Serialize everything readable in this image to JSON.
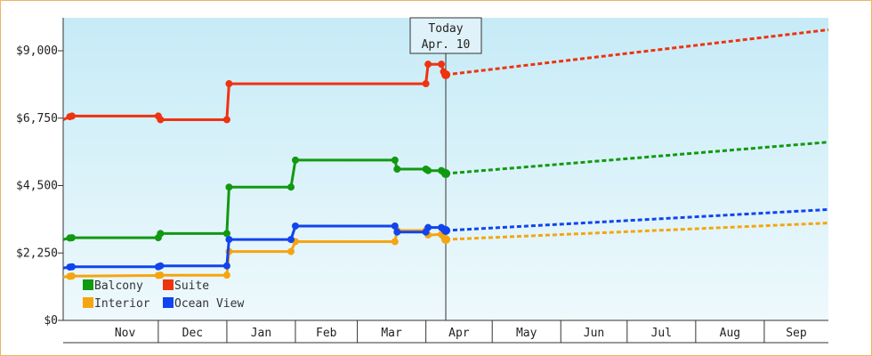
{
  "chart_data": {
    "type": "line",
    "title": "",
    "xlabel": "",
    "ylabel": "",
    "ylim": [
      0,
      10100
    ],
    "yticks": [
      {
        "value": 0,
        "label": "$0"
      },
      {
        "value": 2250,
        "label": "$2,250"
      },
      {
        "value": 4500,
        "label": "$4,500"
      },
      {
        "value": 6750,
        "label": "$6,750"
      },
      {
        "value": 9000,
        "label": "$9,000"
      }
    ],
    "x_axis": {
      "type": "date",
      "start": "2024-10-19",
      "end": "2025-09-30",
      "month_labels": [
        {
          "label": "Nov",
          "start": "2024-11-01",
          "end": "2024-12-01"
        },
        {
          "label": "Dec",
          "start": "2024-12-01",
          "end": "2025-01-01"
        },
        {
          "label": "Jan",
          "start": "2025-01-01",
          "end": "2025-02-01"
        },
        {
          "label": "Feb",
          "start": "2025-02-01",
          "end": "2025-03-01"
        },
        {
          "label": "Mar",
          "start": "2025-03-01",
          "end": "2025-04-01"
        },
        {
          "label": "Apr",
          "start": "2025-04-01",
          "end": "2025-05-01"
        },
        {
          "label": "May",
          "start": "2025-05-01",
          "end": "2025-06-01"
        },
        {
          "label": "Jun",
          "start": "2025-06-01",
          "end": "2025-07-01"
        },
        {
          "label": "Jul",
          "start": "2025-07-01",
          "end": "2025-08-01"
        },
        {
          "label": "Aug",
          "start": "2025-08-01",
          "end": "2025-09-01"
        },
        {
          "label": "Sep",
          "start": "2025-09-01",
          "end": "2025-09-30"
        }
      ]
    },
    "today": {
      "date": "2025-04-10",
      "label_line1": "Today",
      "label_line2": "Apr. 10"
    },
    "legend": {
      "placement": "bottom-left"
    },
    "grid": false,
    "series": [
      {
        "name": "Balcony",
        "color": "#119911",
        "history": [
          [
            "2024-10-19",
            2700
          ],
          [
            "2024-10-22",
            2750
          ],
          [
            "2024-10-23",
            2760
          ],
          [
            "2024-12-01",
            2760
          ],
          [
            "2024-12-02",
            2900
          ],
          [
            "2025-01-01",
            2900
          ],
          [
            "2025-01-02",
            4450
          ],
          [
            "2025-01-30",
            4450
          ],
          [
            "2025-02-01",
            5350
          ],
          [
            "2025-03-18",
            5350
          ],
          [
            "2025-03-19",
            5050
          ],
          [
            "2025-04-01",
            5050
          ],
          [
            "2025-04-02",
            5000
          ],
          [
            "2025-04-08",
            5000
          ],
          [
            "2025-04-09",
            4950
          ],
          [
            "2025-04-10",
            4900
          ]
        ],
        "forecast": [
          [
            "2025-04-10",
            4900
          ],
          [
            "2025-09-30",
            5950
          ]
        ]
      },
      {
        "name": "Suite",
        "color": "#ee3311",
        "history": [
          [
            "2024-10-19",
            6700
          ],
          [
            "2024-10-22",
            6800
          ],
          [
            "2024-10-23",
            6820
          ],
          [
            "2024-12-01",
            6820
          ],
          [
            "2024-12-02",
            6700
          ],
          [
            "2025-01-01",
            6700
          ],
          [
            "2025-01-02",
            7900
          ],
          [
            "2025-04-01",
            7900
          ],
          [
            "2025-04-02",
            8550
          ],
          [
            "2025-04-08",
            8550
          ],
          [
            "2025-04-09",
            8300
          ],
          [
            "2025-04-10",
            8200
          ]
        ],
        "forecast": [
          [
            "2025-04-10",
            8200
          ],
          [
            "2025-09-30",
            9700
          ]
        ]
      },
      {
        "name": "Interior",
        "color": "#f5a510",
        "history": [
          [
            "2024-10-19",
            1450
          ],
          [
            "2024-10-22",
            1470
          ],
          [
            "2024-10-23",
            1480
          ],
          [
            "2024-12-01",
            1500
          ],
          [
            "2024-12-02",
            1510
          ],
          [
            "2025-01-01",
            1510
          ],
          [
            "2025-01-02",
            2300
          ],
          [
            "2025-01-30",
            2300
          ],
          [
            "2025-02-01",
            2630
          ],
          [
            "2025-03-18",
            2630
          ],
          [
            "2025-03-19",
            3000
          ],
          [
            "2025-04-01",
            3000
          ],
          [
            "2025-04-02",
            2850
          ],
          [
            "2025-04-08",
            2870
          ],
          [
            "2025-04-09",
            2800
          ],
          [
            "2025-04-10",
            2700
          ]
        ],
        "forecast": [
          [
            "2025-04-10",
            2700
          ],
          [
            "2025-09-30",
            3250
          ]
        ]
      },
      {
        "name": "Ocean View",
        "color": "#1144ee",
        "history": [
          [
            "2024-10-19",
            1750
          ],
          [
            "2024-10-22",
            1780
          ],
          [
            "2024-10-23",
            1790
          ],
          [
            "2024-12-01",
            1790
          ],
          [
            "2024-12-02",
            1820
          ],
          [
            "2025-01-01",
            1820
          ],
          [
            "2025-01-02",
            2700
          ],
          [
            "2025-01-30",
            2700
          ],
          [
            "2025-02-01",
            3150
          ],
          [
            "2025-03-18",
            3150
          ],
          [
            "2025-03-19",
            2950
          ],
          [
            "2025-04-01",
            2950
          ],
          [
            "2025-04-02",
            3100
          ],
          [
            "2025-04-08",
            3100
          ],
          [
            "2025-04-09",
            3050
          ],
          [
            "2025-04-10",
            3000
          ]
        ],
        "forecast": [
          [
            "2025-04-10",
            3000
          ],
          [
            "2025-09-30",
            3700
          ]
        ]
      }
    ]
  }
}
